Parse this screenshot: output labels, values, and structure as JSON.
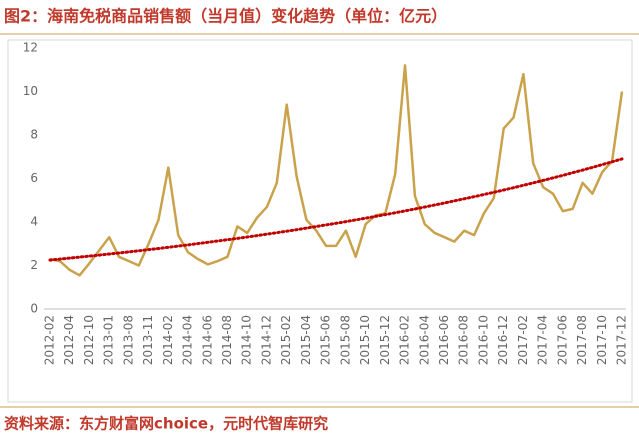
{
  "header": {
    "title": "图2：海南免税商品销售额（当月值）变化趋势（单位：亿元）"
  },
  "chart_data": {
    "type": "line",
    "categories": [
      "2012-02",
      null,
      "2012-04",
      null,
      "2012-10",
      null,
      "2013-01",
      null,
      "2013-08",
      null,
      "2013-11",
      null,
      "2014-02",
      null,
      "2014-04",
      null,
      "2014-06",
      null,
      "2014-08",
      null,
      "2014-10",
      null,
      "2014-12",
      null,
      "2015-02",
      null,
      "2015-04",
      null,
      "2015-06",
      null,
      "2015-08",
      null,
      "2015-10",
      null,
      "2015-12",
      null,
      "2016-02",
      null,
      "2016-04",
      null,
      "2016-06",
      null,
      "2016-08",
      null,
      "2016-10",
      null,
      "2016-12",
      null,
      "2017-02",
      null,
      "2017-04",
      null,
      "2017-06",
      null,
      "2017-08",
      null,
      "2017-10",
      null,
      "2017-12"
    ],
    "series": [
      {
        "color": "#c9a24b",
        "values": [
          2.3,
          2.2,
          1.8,
          1.55,
          2.1,
          2.7,
          3.3,
          2.4,
          2.2,
          2.0,
          3.0,
          4.1,
          6.5,
          3.4,
          2.6,
          2.3,
          2.05,
          2.2,
          2.4,
          3.8,
          3.5,
          4.2,
          4.7,
          5.8,
          9.4,
          6.1,
          4.1,
          3.6,
          2.9,
          2.9,
          3.6,
          2.4,
          3.9,
          4.3,
          4.4,
          6.2,
          11.2,
          5.2,
          3.9,
          3.5,
          3.3,
          3.1,
          3.6,
          3.4,
          4.4,
          5.1,
          8.3,
          8.8,
          10.8,
          6.7,
          5.6,
          5.3,
          4.5,
          4.6,
          5.8,
          5.3,
          6.3,
          6.8,
          10.0
        ]
      }
    ],
    "trend": {
      "type": "exponential",
      "color": "#c00000",
      "values": [
        2.25,
        6.9
      ]
    },
    "ylim": [
      0,
      12
    ],
    "yticks": [
      0,
      2,
      4,
      6,
      8,
      10,
      12
    ]
  },
  "footer": {
    "source": "资料来源：东方财富网choice，元时代智库研究"
  }
}
